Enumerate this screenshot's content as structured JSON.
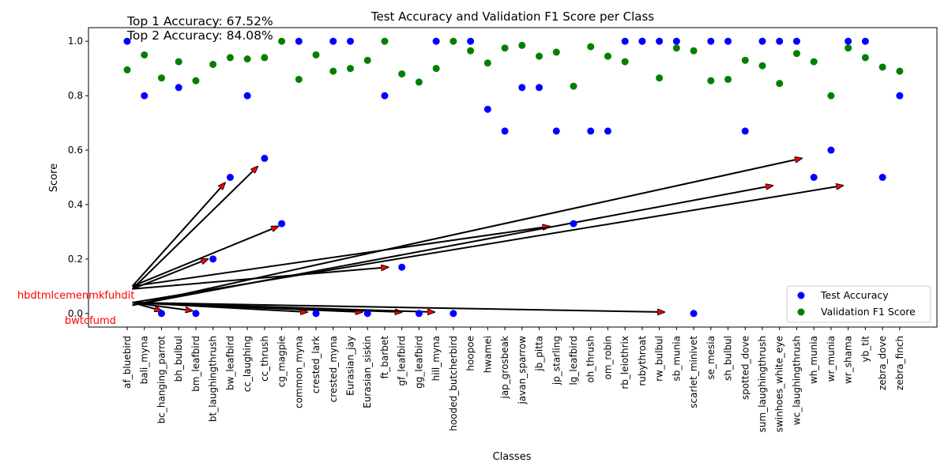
{
  "chart_data": {
    "type": "scatter",
    "title": "Test Accuracy and Validation F1 Score per Class",
    "xlabel": "Classes",
    "ylabel": "Score",
    "ylim": [
      -0.05,
      1.05
    ],
    "yticks": [
      "0.0",
      "0.2",
      "0.4",
      "0.6",
      "0.8",
      "1.0"
    ],
    "categories": [
      "af_bluebird",
      "bali_myna",
      "bc_hanging_parrot",
      "bh_bulbul",
      "bm_leafbird",
      "bt_laughingthrush",
      "bw_leafbird",
      "cc_laughing",
      "cc_thrush",
      "cg_magpie",
      "common_myna",
      "crested_lark",
      "crested_myna",
      "Eurasian_jay",
      "Eurasian_siskin",
      "ft_barbet",
      "gf_leafbird",
      "gg_leafbird",
      "hill_myna",
      "hooded_butcherbird",
      "hoopoe",
      "hwamei",
      "jap_grosbeak",
      "javan_sparrow",
      "jb_pitta",
      "jp_starling",
      "lg_leafbird",
      "oh_thrush",
      "om_robin",
      "rb_leiothrix",
      "rubythroat",
      "rw_bulbul",
      "sb_munia",
      "scarlet_minivet",
      "se_mesia",
      "sh_bulbul",
      "spotted_dove",
      "sum_laughingthrush",
      "swinhoes_white_eye",
      "wc_laughingthrush",
      "wh_munia",
      "wr_munia",
      "wr_shama",
      "yb_tit",
      "zebra_dove",
      "zebra_finch"
    ],
    "series": [
      {
        "name": "Test Accuracy",
        "color": "#0000ff",
        "values": [
          1.0,
          0.8,
          0.0,
          0.83,
          0.0,
          0.2,
          0.5,
          0.8,
          0.57,
          0.33,
          1.0,
          0.0,
          1.0,
          1.0,
          0.0,
          0.8,
          0.17,
          0.0,
          1.0,
          0.0,
          1.0,
          0.75,
          0.67,
          0.83,
          0.83,
          0.67,
          0.33,
          0.67,
          0.67,
          1.0,
          1.0,
          1.0,
          1.0,
          0.0,
          1.0,
          1.0,
          0.67,
          1.0,
          1.0,
          1.0,
          0.5,
          0.6,
          1.0,
          1.0,
          0.5,
          0.8
        ]
      },
      {
        "name": "Validation F1 Score",
        "color": "#008000",
        "values": [
          0.895,
          0.95,
          0.865,
          0.925,
          0.855,
          0.915,
          0.94,
          0.935,
          0.94,
          1.0,
          0.86,
          0.95,
          0.89,
          0.9,
          0.93,
          1.0,
          0.88,
          0.85,
          0.9,
          1.0,
          0.965,
          0.92,
          0.975,
          0.985,
          0.945,
          0.96,
          0.835,
          0.98,
          0.945,
          0.925,
          1.0,
          0.865,
          0.975,
          0.965,
          0.855,
          0.86,
          0.93,
          0.91,
          0.845,
          0.955,
          0.925,
          0.8,
          0.975,
          0.94,
          0.905,
          0.89
        ]
      }
    ],
    "legend": {
      "placement": "lower-right",
      "entries": [
        "Test Accuracy",
        "Validation F1 Score"
      ]
    },
    "annotations_text": [
      "Top 1 Accuracy: 67.52%",
      "Top 2 Accuracy: 84.08%"
    ],
    "arrow_labels": {
      "upper_label": "hbdtmlcemenmkfuhdit",
      "lower_label": "bwtcfumd"
    },
    "arrows": [
      {
        "from": [
          0.3,
          0.1
        ],
        "to": [
          5.7,
          0.48
        ]
      },
      {
        "from": [
          0.3,
          0.09
        ],
        "to": [
          7.6,
          0.54
        ]
      },
      {
        "from": [
          0.3,
          0.1
        ],
        "to": [
          8.8,
          0.32
        ]
      },
      {
        "from": [
          0.3,
          0.09
        ],
        "to": [
          4.7,
          0.2
        ]
      },
      {
        "from": [
          0.3,
          0.1
        ],
        "to": [
          24.6,
          0.32
        ]
      },
      {
        "from": [
          0.3,
          0.09
        ],
        "to": [
          15.2,
          0.17
        ]
      },
      {
        "from": [
          0.3,
          0.03
        ],
        "to": [
          37.6,
          0.47
        ]
      },
      {
        "from": [
          0.3,
          0.03
        ],
        "to": [
          39.3,
          0.57
        ]
      },
      {
        "from": [
          0.3,
          0.04
        ],
        "to": [
          41.7,
          0.47
        ]
      },
      {
        "from": [
          0.3,
          0.04
        ],
        "to": [
          2.0,
          0.01
        ]
      },
      {
        "from": [
          0.3,
          0.04
        ],
        "to": [
          3.8,
          0.01
        ]
      },
      {
        "from": [
          0.3,
          0.04
        ],
        "to": [
          10.5,
          0.005
        ]
      },
      {
        "from": [
          0.3,
          0.04
        ],
        "to": [
          13.7,
          0.005
        ]
      },
      {
        "from": [
          0.3,
          0.04
        ],
        "to": [
          16.0,
          0.005
        ]
      },
      {
        "from": [
          0.3,
          0.04
        ],
        "to": [
          17.9,
          0.005
        ]
      },
      {
        "from": [
          0.3,
          0.04
        ],
        "to": [
          31.3,
          0.005
        ]
      }
    ]
  }
}
